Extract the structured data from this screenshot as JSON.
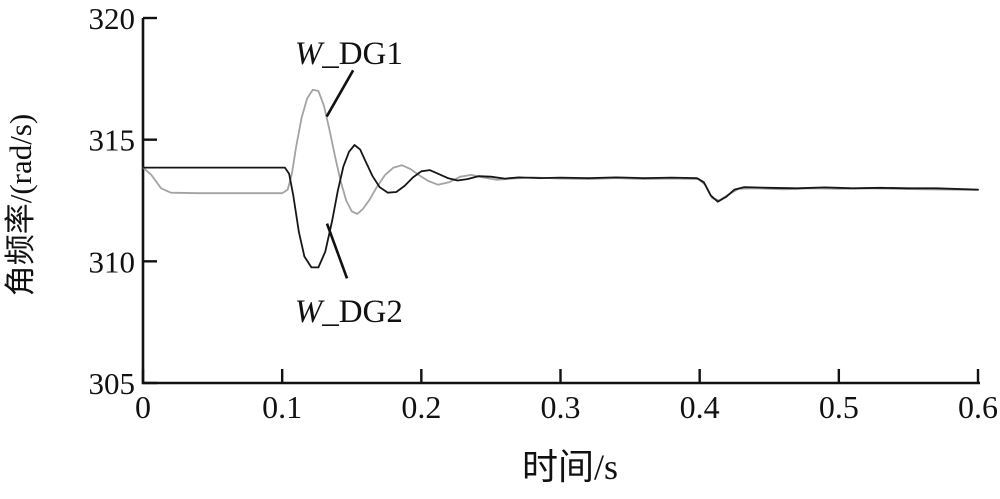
{
  "figure": {
    "background": "#ffffff",
    "axis_color": "#111111"
  },
  "chart_data": {
    "type": "line",
    "title": "",
    "xlabel": "时间/s",
    "ylabel": "角频率/(rad/s)",
    "xlim": [
      0,
      0.6
    ],
    "ylim": [
      305,
      320
    ],
    "grid": false,
    "legend_position": "none",
    "xtick_values": [
      0,
      0.1,
      0.2,
      0.3,
      0.4,
      0.5,
      0.6
    ],
    "xtick_labels": [
      "0",
      "0.1",
      "0.2",
      "0.3",
      "0.4",
      "0.5",
      "0.6"
    ],
    "ytick_values": [
      305,
      310,
      315,
      320
    ],
    "ytick_labels": [
      "305",
      "310",
      "315",
      "320"
    ],
    "series": [
      {
        "name": "W_DG1",
        "color": "#a3a3a3",
        "points": [
          [
            0,
            313.85
          ],
          [
            0.006,
            313.55
          ],
          [
            0.013,
            313.0
          ],
          [
            0.02,
            312.82
          ],
          [
            0.04,
            312.8
          ],
          [
            0.06,
            312.8
          ],
          [
            0.08,
            312.8
          ],
          [
            0.1,
            312.8
          ],
          [
            0.104,
            312.95
          ],
          [
            0.107,
            313.6
          ],
          [
            0.11,
            314.7
          ],
          [
            0.114,
            315.9
          ],
          [
            0.118,
            316.7
          ],
          [
            0.122,
            317.05
          ],
          [
            0.126,
            317.0
          ],
          [
            0.13,
            316.4
          ],
          [
            0.134,
            315.4
          ],
          [
            0.138,
            314.3
          ],
          [
            0.142,
            313.3
          ],
          [
            0.146,
            312.5
          ],
          [
            0.15,
            312.05
          ],
          [
            0.154,
            311.95
          ],
          [
            0.158,
            312.15
          ],
          [
            0.163,
            312.55
          ],
          [
            0.168,
            313.05
          ],
          [
            0.174,
            313.55
          ],
          [
            0.18,
            313.85
          ],
          [
            0.186,
            313.95
          ],
          [
            0.192,
            313.8
          ],
          [
            0.198,
            313.55
          ],
          [
            0.205,
            313.3
          ],
          [
            0.212,
            313.15
          ],
          [
            0.22,
            313.25
          ],
          [
            0.228,
            313.48
          ],
          [
            0.236,
            313.55
          ],
          [
            0.244,
            313.45
          ],
          [
            0.254,
            313.35
          ],
          [
            0.265,
            313.4
          ],
          [
            0.28,
            313.45
          ],
          [
            0.3,
            313.4
          ],
          [
            0.32,
            313.38
          ],
          [
            0.34,
            313.42
          ],
          [
            0.36,
            313.38
          ],
          [
            0.38,
            313.4
          ],
          [
            0.399,
            313.38
          ],
          [
            0.404,
            313.15
          ],
          [
            0.409,
            312.6
          ],
          [
            0.414,
            312.5
          ],
          [
            0.42,
            312.72
          ],
          [
            0.428,
            312.98
          ],
          [
            0.44,
            313.0
          ],
          [
            0.46,
            312.96
          ],
          [
            0.48,
            313.0
          ],
          [
            0.5,
            312.98
          ],
          [
            0.52,
            313.0
          ],
          [
            0.55,
            312.97
          ],
          [
            0.6,
            312.93
          ]
        ]
      },
      {
        "name": "W_DG2",
        "color": "#161616",
        "points": [
          [
            0,
            313.85
          ],
          [
            0.03,
            313.85
          ],
          [
            0.06,
            313.85
          ],
          [
            0.09,
            313.85
          ],
          [
            0.102,
            313.85
          ],
          [
            0.105,
            313.6
          ],
          [
            0.108,
            312.7
          ],
          [
            0.112,
            311.2
          ],
          [
            0.116,
            310.2
          ],
          [
            0.121,
            309.75
          ],
          [
            0.126,
            309.75
          ],
          [
            0.131,
            310.4
          ],
          [
            0.136,
            311.7
          ],
          [
            0.14,
            312.9
          ],
          [
            0.144,
            313.9
          ],
          [
            0.148,
            314.5
          ],
          [
            0.152,
            314.78
          ],
          [
            0.156,
            314.6
          ],
          [
            0.16,
            314.1
          ],
          [
            0.165,
            313.5
          ],
          [
            0.17,
            313.05
          ],
          [
            0.176,
            312.82
          ],
          [
            0.182,
            312.85
          ],
          [
            0.188,
            313.1
          ],
          [
            0.194,
            313.45
          ],
          [
            0.2,
            313.7
          ],
          [
            0.206,
            313.75
          ],
          [
            0.212,
            313.6
          ],
          [
            0.219,
            313.42
          ],
          [
            0.226,
            313.32
          ],
          [
            0.233,
            313.38
          ],
          [
            0.241,
            313.5
          ],
          [
            0.25,
            313.48
          ],
          [
            0.26,
            313.4
          ],
          [
            0.27,
            313.45
          ],
          [
            0.285,
            313.42
          ],
          [
            0.3,
            313.44
          ],
          [
            0.32,
            313.42
          ],
          [
            0.34,
            313.45
          ],
          [
            0.36,
            313.42
          ],
          [
            0.38,
            313.44
          ],
          [
            0.398,
            313.42
          ],
          [
            0.403,
            313.25
          ],
          [
            0.408,
            312.7
          ],
          [
            0.413,
            312.45
          ],
          [
            0.419,
            312.65
          ],
          [
            0.425,
            312.95
          ],
          [
            0.432,
            313.05
          ],
          [
            0.45,
            313.02
          ],
          [
            0.47,
            313.0
          ],
          [
            0.49,
            313.04
          ],
          [
            0.51,
            313.0
          ],
          [
            0.53,
            313.02
          ],
          [
            0.55,
            313.0
          ],
          [
            0.57,
            313.0
          ],
          [
            0.6,
            312.95
          ]
        ]
      }
    ],
    "annotations": [
      {
        "name": "W_DG1",
        "prefix": "W",
        "rest": "_DG1",
        "text_x": 0.109,
        "text_y": 318.1,
        "line": [
          [
            0.151,
            317.85
          ],
          [
            0.132,
            315.95
          ]
        ]
      },
      {
        "name": "W_DG2",
        "prefix": "W",
        "rest": "_DG2",
        "text_x": 0.109,
        "text_y": 307.5,
        "line": [
          [
            0.1466,
            309.3
          ],
          [
            0.1322,
            311.55
          ]
        ]
      }
    ]
  }
}
